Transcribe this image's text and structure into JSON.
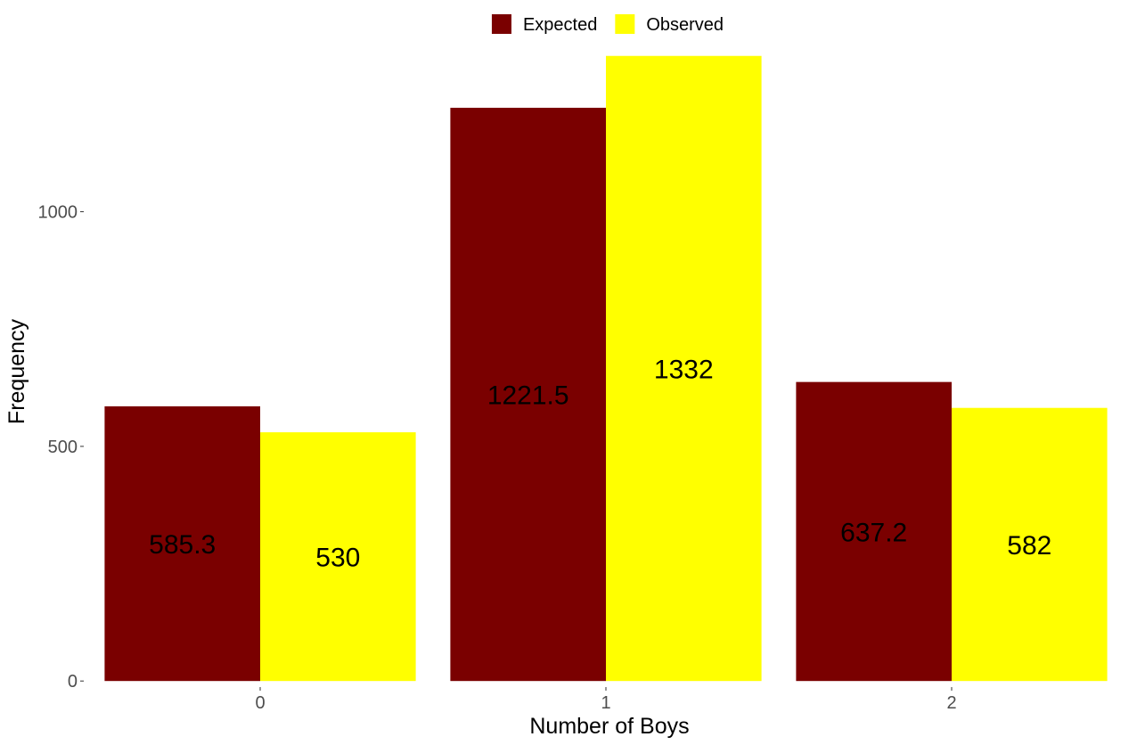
{
  "chart_data": {
    "type": "bar",
    "categories": [
      "0",
      "1",
      "2"
    ],
    "series": [
      {
        "name": "Expected",
        "values": [
          585.3,
          1221.5,
          637.2
        ],
        "labels": [
          "585.3",
          "1221.5",
          "637.2"
        ],
        "color": "#7a0000"
      },
      {
        "name": "Observed",
        "values": [
          530,
          1332,
          582
        ],
        "labels": [
          "530",
          "1332",
          "582"
        ],
        "color": "#ffff00"
      }
    ],
    "xlabel": "Number of Boys",
    "ylabel": "Frequency",
    "yticks": [
      0,
      500,
      1000
    ],
    "ytick_labels": [
      "0",
      "500",
      "1000"
    ],
    "ylim": [
      -49,
      1360
    ],
    "legend_position": "top",
    "grid": false
  }
}
